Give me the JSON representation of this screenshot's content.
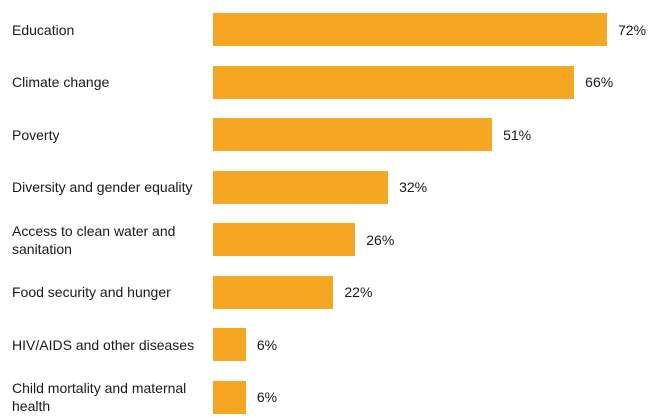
{
  "chart_data": {
    "type": "bar",
    "orientation": "horizontal",
    "categories": [
      "Education",
      "Climate change",
      "Poverty",
      "Diversity and gender equality",
      "Access to clean water and sanitation",
      "Food security and hunger",
      "HIV/AIDS and other diseases",
      "Child mortality  and maternal health"
    ],
    "values": [
      72,
      66,
      51,
      32,
      26,
      22,
      6,
      6
    ],
    "value_labels": [
      "72%",
      "66%",
      "51%",
      "32%",
      "26%",
      "22%",
      "6%",
      "6%"
    ],
    "bar_color": "#F5A623",
    "grid": false,
    "legend": "none"
  }
}
